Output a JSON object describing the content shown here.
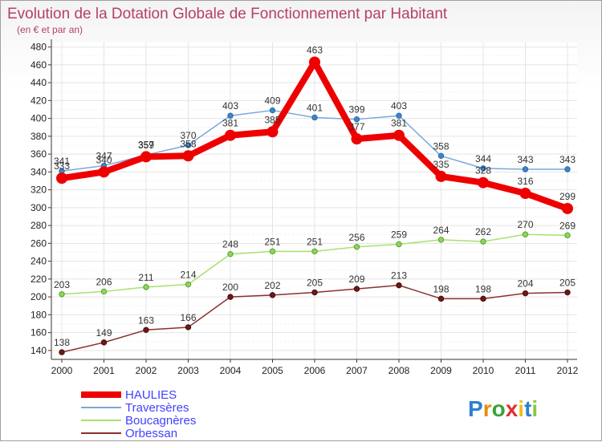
{
  "chart_data": {
    "type": "line",
    "title": "Evolution de la Dotation Globale de Fonctionnement par Habitant",
    "subtitle": "(en € et par an)",
    "xlabel": "",
    "ylabel": "",
    "ylim": [
      130,
      485
    ],
    "yticks": [
      140,
      160,
      180,
      200,
      220,
      240,
      260,
      280,
      300,
      320,
      340,
      360,
      380,
      400,
      420,
      440,
      460,
      480
    ],
    "x": [
      2000,
      2001,
      2002,
      2003,
      2004,
      2005,
      2006,
      2007,
      2008,
      2009,
      2010,
      2011,
      2012
    ],
    "grid": true,
    "legend_position": "bottom-left",
    "series": [
      {
        "name": "HAULIES",
        "color": "#ee0000",
        "values": [
          333,
          340,
          357,
          358,
          381,
          385,
          463,
          377,
          381,
          335,
          328,
          316,
          299
        ]
      },
      {
        "name": "Traversères",
        "color": "#6fa0d0",
        "values": [
          341,
          347,
          359,
          370,
          403,
          409,
          401,
          399,
          403,
          358,
          344,
          343,
          343
        ]
      },
      {
        "name": "Boucagnères",
        "color": "#98e060",
        "values": [
          203,
          206,
          211,
          214,
          248,
          251,
          251,
          256,
          259,
          264,
          262,
          270,
          269
        ]
      },
      {
        "name": "Orbessan",
        "color": "#7a2020",
        "values": [
          138,
          149,
          163,
          166,
          200,
          202,
          205,
          209,
          213,
          198,
          198,
          204,
          205
        ]
      }
    ]
  },
  "brand": {
    "text": "Proxiti",
    "letters": [
      "P",
      "r",
      "o",
      "x",
      "i",
      "t",
      "i"
    ],
    "colors": [
      "#2e7fd0",
      "#ea8a10",
      "#37a43a",
      "#e03030",
      "#e8c020",
      "#2e7fd0",
      "#8ac840"
    ]
  }
}
